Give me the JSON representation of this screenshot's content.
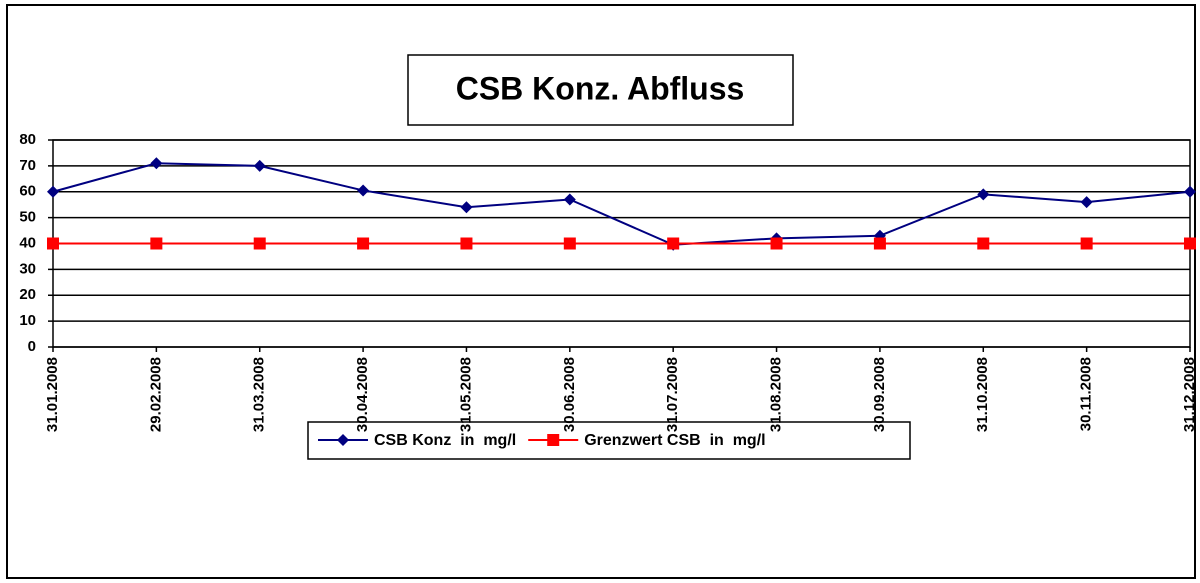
{
  "chart_data": {
    "type": "line",
    "title": "CSB Konz. Abfluss",
    "categories": [
      "31.01.2008",
      "29.02.2008",
      "31.03.2008",
      "30.04.2008",
      "31.05.2008",
      "30.06.2008",
      "31.07.2008",
      "31.08.2008",
      "30.09.2008",
      "31.10.2008",
      "30.11.2008",
      "31.12.2008"
    ],
    "series": [
      {
        "name": "CSB Konz  in  mg/l",
        "color": "#000080",
        "marker": "diamond",
        "values": [
          60,
          71,
          70,
          60.5,
          54,
          57,
          39.5,
          42,
          43,
          59,
          56,
          60
        ]
      },
      {
        "name": "Grenzwert CSB  in  mg/l",
        "color": "#ff0000",
        "marker": "square",
        "values": [
          40,
          40,
          40,
          40,
          40,
          40,
          40,
          40,
          40,
          40,
          40,
          40
        ]
      }
    ],
    "ylim": [
      0,
      80
    ],
    "yticks": [
      0,
      10,
      20,
      30,
      40,
      50,
      60,
      70,
      80
    ],
    "grid": true,
    "legend": "bottom"
  }
}
